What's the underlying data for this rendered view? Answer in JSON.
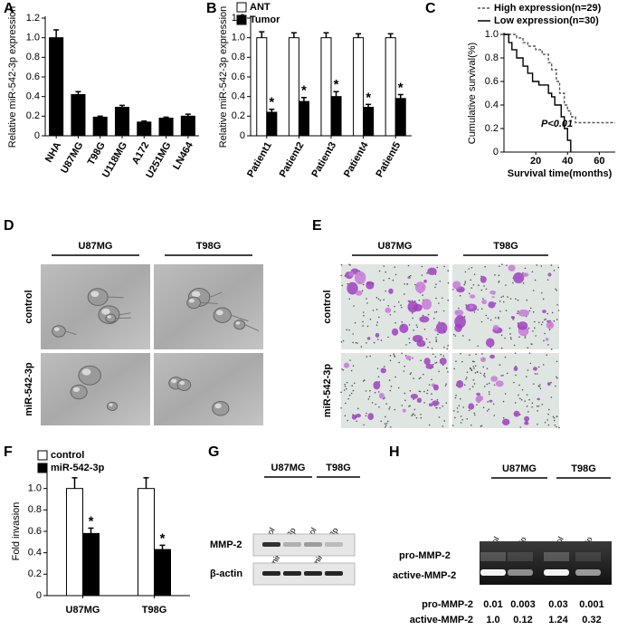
{
  "chart_data": [
    {
      "type": "bar",
      "panel": "A",
      "y_label": "Relative miR-542-3p expression",
      "categories": [
        "NHA",
        "U87MG",
        "T98G",
        "U118MG",
        "A172",
        "U251MG",
        "LN464"
      ],
      "values": [
        1.0,
        0.42,
        0.19,
        0.29,
        0.14,
        0.18,
        0.2
      ],
      "errors": [
        0.08,
        0.03,
        0.01,
        0.02,
        0.01,
        0.01,
        0.02
      ],
      "color": "#000000",
      "ylim": [
        0,
        1.2
      ],
      "yticks": [
        0,
        0.2,
        0.4,
        0.6,
        0.8,
        {
          "value": 1,
          "label": "1.0"
        },
        1.2
      ]
    },
    {
      "type": "bar",
      "panel": "B",
      "y_label": "Relative miR-542-3p expression",
      "categories": [
        "Patient1",
        "Patient2",
        "Patient3",
        "Patient4",
        "Patient5"
      ],
      "series": [
        {
          "name": "ANT",
          "color": "#ffffff",
          "values": [
            1,
            1,
            1,
            1,
            1
          ],
          "errors": [
            0.06,
            0.05,
            0.05,
            0.04,
            0.04
          ]
        },
        {
          "name": "Tumor",
          "color": "#000000",
          "values": [
            0.24,
            0.35,
            0.4,
            0.29,
            0.38
          ],
          "errors": [
            0.03,
            0.04,
            0.05,
            0.03,
            0.04
          ],
          "annotations": [
            "*",
            "*",
            "*",
            "*",
            "*"
          ]
        }
      ],
      "legend": "upper left",
      "ylim": [
        0,
        1.2
      ],
      "yticks": [
        0,
        0.2,
        0.4,
        0.6,
        0.8,
        {
          "value": 1,
          "label": "1.0"
        },
        1.2
      ]
    },
    {
      "type": "line",
      "panel": "C",
      "y_label": "Cumulative survival(%)",
      "x_label": "Survival time(months)",
      "annotation": "P<0.01",
      "series": [
        {
          "name": "High expression(n=29)",
          "color": "#555555",
          "linestyle": "dashed",
          "x": [
            0,
            8,
            12,
            15,
            20,
            24,
            28,
            30,
            33,
            35,
            38,
            40,
            42,
            45,
            70
          ],
          "values": [
            1,
            0.97,
            0.93,
            0.9,
            0.87,
            0.83,
            0.76,
            0.7,
            0.6,
            0.5,
            0.4,
            0.35,
            0.3,
            0.25,
            0.25
          ]
        },
        {
          "name": "Low expression(n=30)",
          "color": "#000000",
          "linestyle": "solid",
          "x": [
            0,
            3,
            5,
            8,
            12,
            15,
            18,
            22,
            28,
            30,
            32,
            36,
            38,
            40,
            42
          ],
          "values": [
            1,
            0.93,
            0.87,
            0.8,
            0.73,
            0.67,
            0.6,
            0.57,
            0.5,
            0.47,
            0.4,
            0.3,
            0.2,
            0.1,
            0
          ]
        }
      ],
      "legend": "upper left",
      "xlim": [
        0,
        70
      ],
      "xticks": [
        20,
        40,
        60
      ],
      "ylim": [
        0,
        1
      ],
      "yticks": [
        0,
        0.2,
        0.4,
        0.6,
        0.8,
        {
          "value": 1,
          "label": "1.0"
        }
      ]
    },
    {
      "type": "bar",
      "panel": "F",
      "y_label": "Fold invasion",
      "categories": [
        "U87MG",
        "T98G"
      ],
      "series": [
        {
          "name": "control",
          "color": "#ffffff",
          "values": [
            1,
            1
          ],
          "errors": [
            0.1,
            0.1
          ]
        },
        {
          "name": "miR-542-3p",
          "color": "#000000",
          "values": [
            0.58,
            0.43
          ],
          "errors": [
            0.05,
            0.04
          ],
          "annotations": [
            "*",
            "*"
          ]
        }
      ],
      "legend": "upper left",
      "ylim": [
        0,
        1.2
      ],
      "yticks": [
        0,
        0.2,
        0.4,
        0.6,
        0.8,
        {
          "value": 1,
          "label": "1.0"
        }
      ]
    }
  ],
  "figure_panels": {
    "D": {
      "label": "D",
      "columns": [
        "U87MG",
        "T98G"
      ],
      "rows": [
        "control",
        "miR-542-3p"
      ]
    },
    "E": {
      "label": "E",
      "columns": [
        "U87MG",
        "T98G"
      ],
      "rows": [
        "control",
        "miR-542-3p"
      ]
    },
    "G": {
      "label": "G",
      "groups": [
        "U87MG",
        "T98G"
      ],
      "lanes": [
        "Control",
        "miR-542-3p",
        "Control",
        "miR-542-3p"
      ],
      "rows": [
        "MMP-2",
        "β-actin"
      ]
    },
    "H": {
      "label": "H",
      "groups": [
        "U87MG",
        "T98G"
      ],
      "lanes": [
        "Control",
        "miR-542-3p",
        "Control",
        "miR-542-3p"
      ],
      "rows": [
        "pro-MMP-2",
        "active-MMP-2"
      ],
      "quantification": [
        {
          "label": "pro-MMP-2",
          "values": [
            "0.01",
            "0.003",
            "0.03",
            "0.001"
          ]
        },
        {
          "label": "active-MMP-2",
          "values": [
            "1.0",
            "0.12",
            "1.24",
            "0.32"
          ]
        }
      ]
    }
  }
}
